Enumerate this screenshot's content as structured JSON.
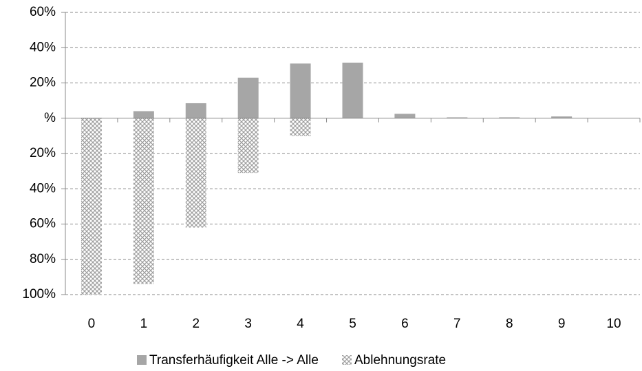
{
  "chart_data": {
    "type": "bar",
    "categories": [
      "0",
      "1",
      "2",
      "3",
      "4",
      "5",
      "6",
      "7",
      "8",
      "9",
      "10"
    ],
    "series": [
      {
        "name": "Transferhäufigkeit Alle -> Alle",
        "color": "#a6a6a6",
        "values": [
          0.3,
          4,
          8.5,
          23,
          31,
          31.5,
          2.5,
          0.5,
          0.5,
          1,
          0
        ]
      },
      {
        "name": "Ablehnungsrate",
        "color": "#9e9e9e",
        "pattern": "crosshatch",
        "values": [
          -100,
          -94,
          -62,
          -31,
          -10,
          0,
          0,
          0,
          0,
          0,
          0
        ]
      }
    ],
    "ylim": [
      -100,
      60
    ],
    "yticks": [
      {
        "value": 60,
        "label": "60%"
      },
      {
        "value": 40,
        "label": "40%"
      },
      {
        "value": 20,
        "label": "20%"
      },
      {
        "value": 0,
        "label": "%"
      },
      {
        "value": -20,
        "label": "20%"
      },
      {
        "value": -40,
        "label": "40%"
      },
      {
        "value": -60,
        "label": "60%"
      },
      {
        "value": -80,
        "label": "80%"
      },
      {
        "value": -100,
        "label": "100%"
      }
    ],
    "grid": true,
    "legend": "bottom"
  }
}
